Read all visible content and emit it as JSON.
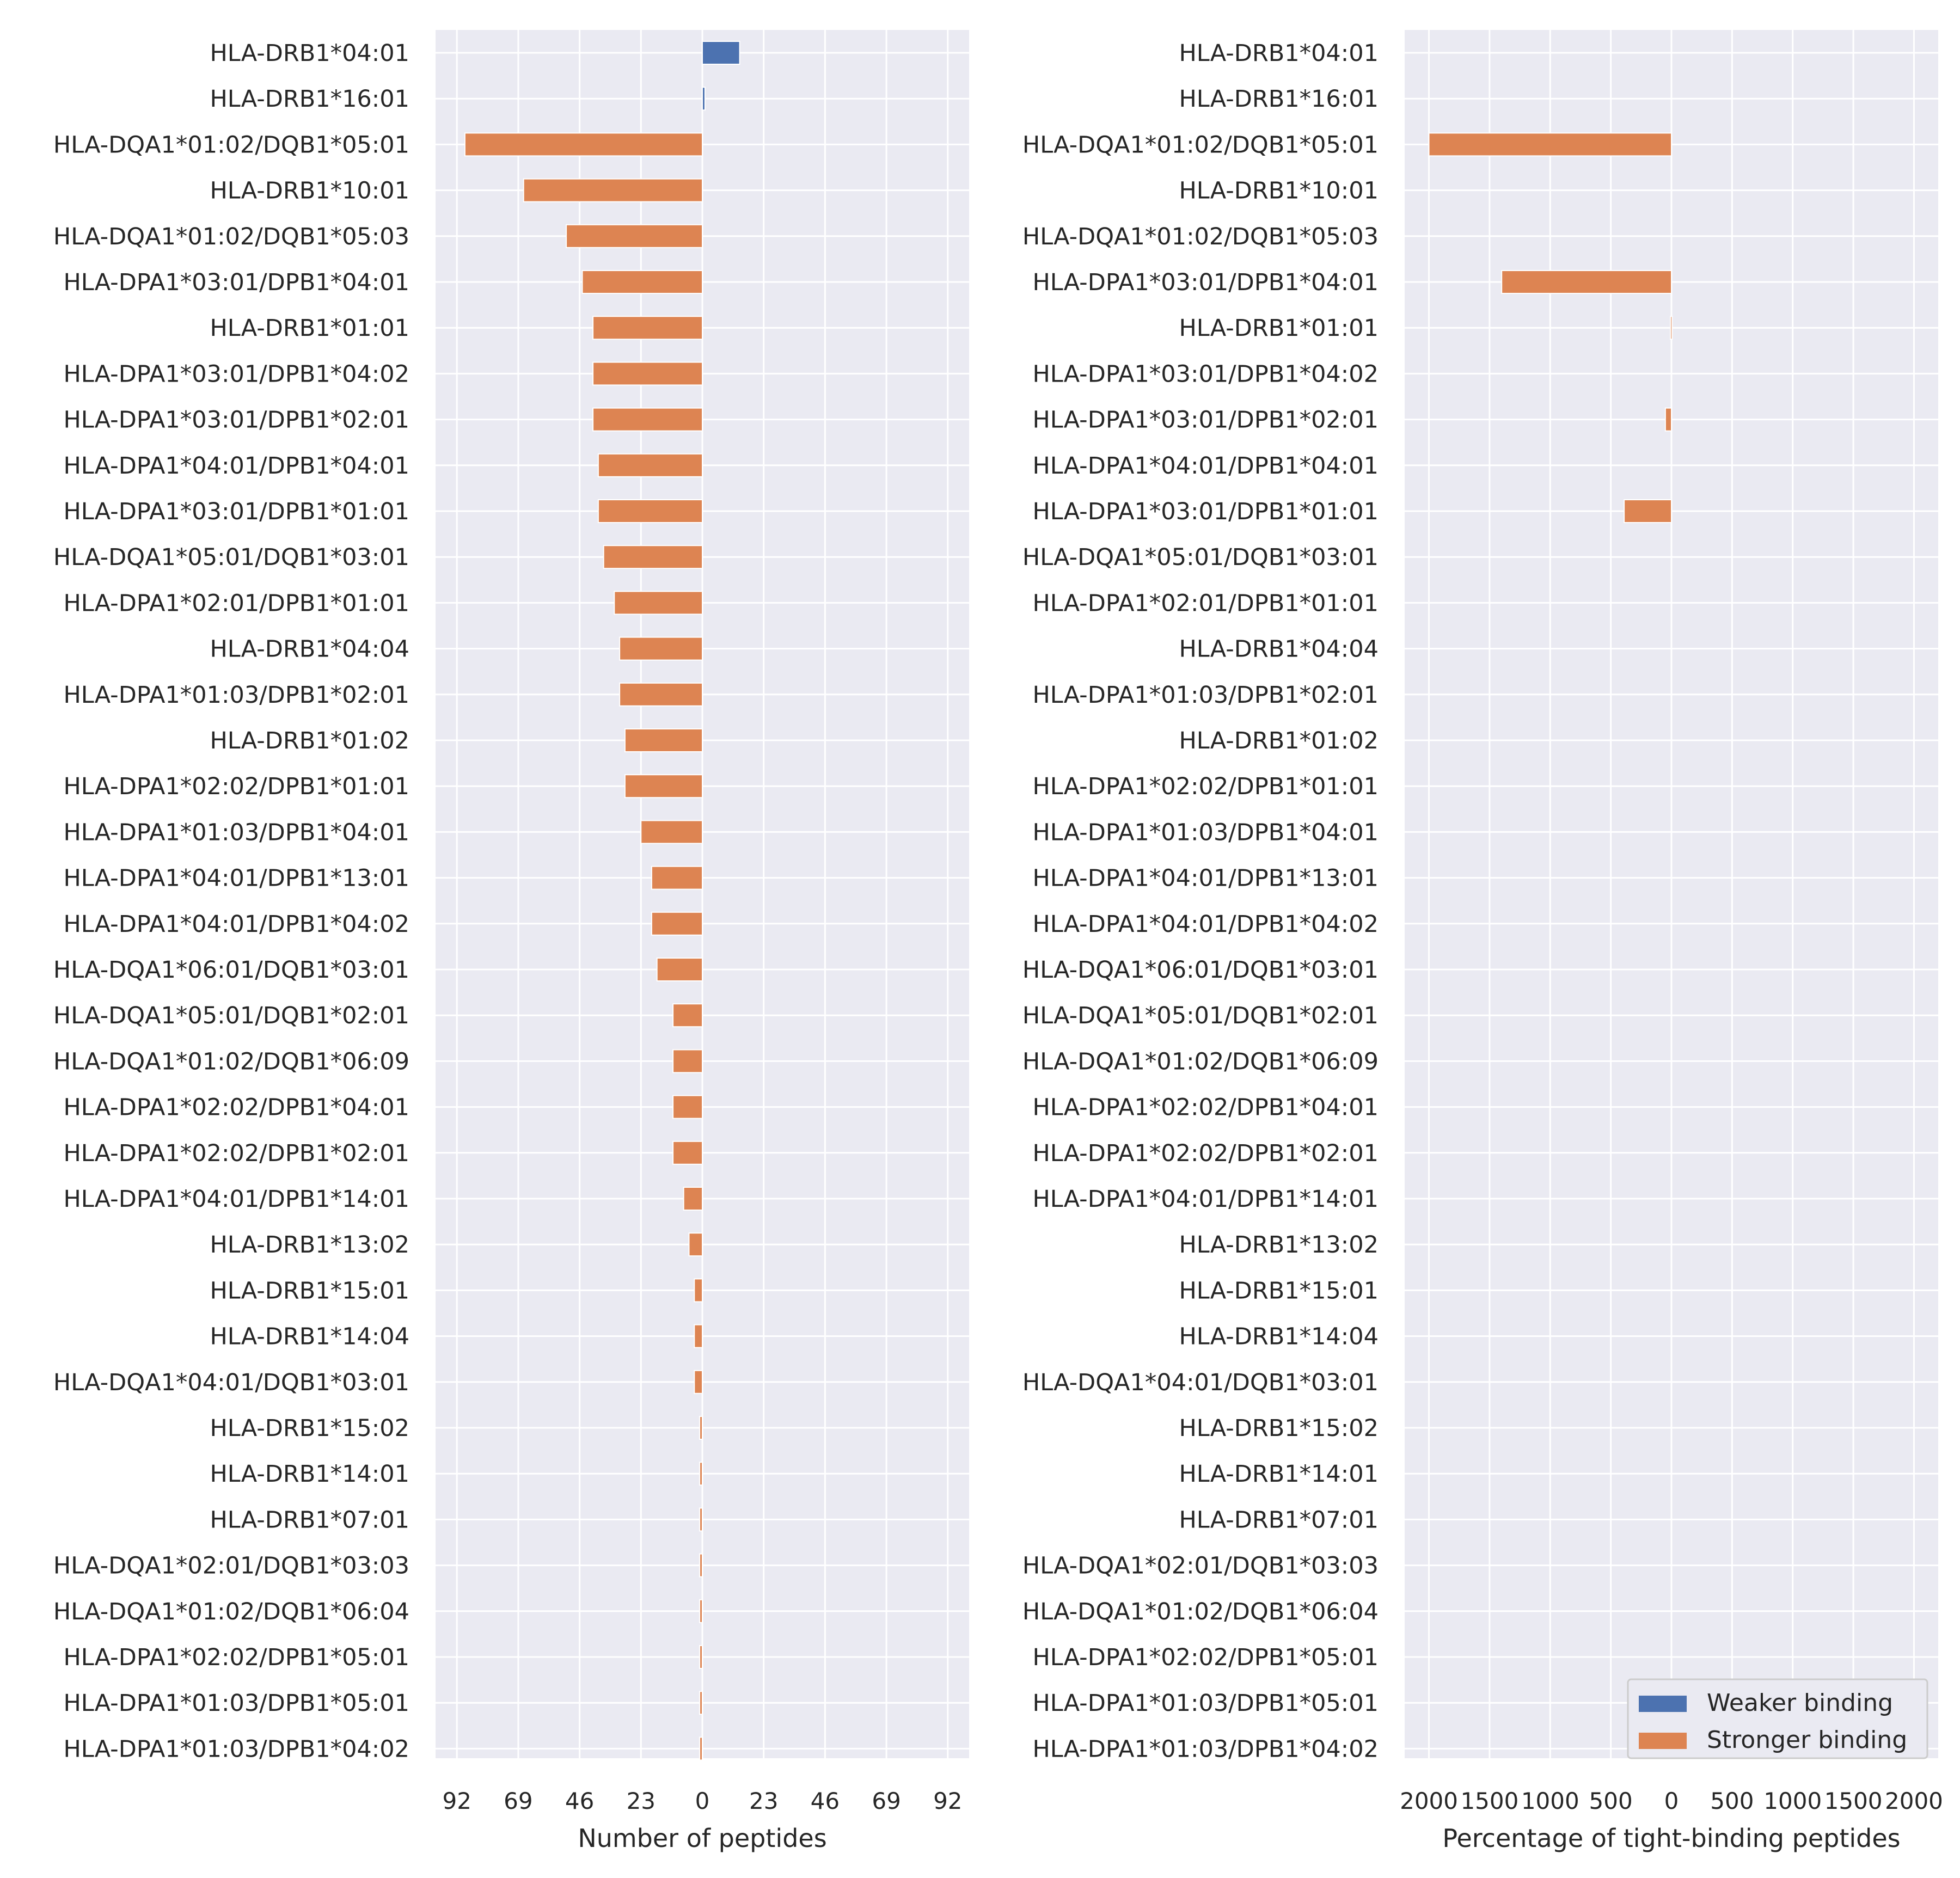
{
  "chart_data": [
    {
      "type": "bar",
      "orientation": "horizontal",
      "categories": [
        "HLA-DRB1*04:01",
        "HLA-DRB1*16:01",
        "HLA-DQA1*01:02/DQB1*05:01",
        "HLA-DRB1*10:01",
        "HLA-DQA1*01:02/DQB1*05:03",
        "HLA-DPA1*03:01/DPB1*04:01",
        "HLA-DRB1*01:01",
        "HLA-DPA1*03:01/DPB1*04:02",
        "HLA-DPA1*03:01/DPB1*02:01",
        "HLA-DPA1*04:01/DPB1*04:01",
        "HLA-DPA1*03:01/DPB1*01:01",
        "HLA-DQA1*05:01/DQB1*03:01",
        "HLA-DPA1*02:01/DPB1*01:01",
        "HLA-DRB1*04:04",
        "HLA-DPA1*01:03/DPB1*02:01",
        "HLA-DRB1*01:02",
        "HLA-DPA1*02:02/DPB1*01:01",
        "HLA-DPA1*01:03/DPB1*04:01",
        "HLA-DPA1*04:01/DPB1*13:01",
        "HLA-DPA1*04:01/DPB1*04:02",
        "HLA-DQA1*06:01/DQB1*03:01",
        "HLA-DQA1*05:01/DQB1*02:01",
        "HLA-DQA1*01:02/DQB1*06:09",
        "HLA-DPA1*02:02/DPB1*04:01",
        "HLA-DPA1*02:02/DPB1*02:01",
        "HLA-DPA1*04:01/DPB1*14:01",
        "HLA-DRB1*13:02",
        "HLA-DRB1*15:01",
        "HLA-DRB1*14:04",
        "HLA-DQA1*04:01/DQB1*03:01",
        "HLA-DRB1*15:02",
        "HLA-DRB1*14:01",
        "HLA-DRB1*07:01",
        "HLA-DQA1*02:01/DQB1*03:03",
        "HLA-DQA1*01:02/DQB1*06:04",
        "HLA-DPA1*02:02/DPB1*05:01",
        "HLA-DPA1*01:03/DPB1*05:01",
        "HLA-DPA1*01:03/DPB1*04:02"
      ],
      "series": [
        {
          "name": "Weaker binding",
          "color": "#4c72b0",
          "values": [
            14,
            1,
            0,
            0,
            0,
            0,
            0,
            0,
            0,
            0,
            0,
            0,
            0,
            0,
            0,
            0,
            0,
            0,
            0,
            0,
            0,
            0,
            0,
            0,
            0,
            0,
            0,
            0,
            0,
            0,
            0,
            0,
            0,
            0,
            0,
            0,
            0,
            0
          ]
        },
        {
          "name": "Stronger binding",
          "color": "#dd8452",
          "values": [
            0,
            0,
            -89,
            -67,
            -51,
            -45,
            -41,
            -41,
            -41,
            -39,
            -39,
            -37,
            -33,
            -31,
            -31,
            -29,
            -29,
            -23,
            -19,
            -19,
            -17,
            -11,
            -11,
            -11,
            -11,
            -7,
            -5,
            -3,
            -3,
            -3,
            -1,
            -1,
            -1,
            -1,
            -1,
            -1,
            -1,
            -1
          ]
        }
      ],
      "xlabel": "Number of peptides",
      "xlim": [
        -100,
        100
      ],
      "xticks": [
        -92,
        -69,
        -46,
        -23,
        0,
        23,
        46,
        69,
        92
      ],
      "xticklabels": [
        "92",
        "69",
        "46",
        "23",
        "0",
        "23",
        "46",
        "69",
        "92"
      ],
      "grid": true
    },
    {
      "type": "bar",
      "orientation": "horizontal",
      "categories_shared_with": 0,
      "series": [
        {
          "name": "Weaker binding",
          "color": "#4c72b0",
          "values": [
            0,
            0,
            0,
            0,
            0,
            0,
            0,
            0,
            0,
            0,
            0,
            0,
            0,
            0,
            0,
            0,
            0,
            0,
            0,
            0,
            0,
            0,
            0,
            0,
            0,
            0,
            0,
            0,
            0,
            0,
            0,
            0,
            0,
            0,
            0,
            0,
            0,
            0
          ]
        },
        {
          "name": "Stronger binding",
          "color": "#dd8452",
          "values": [
            0,
            0,
            -2000,
            0,
            0,
            -1400,
            -8,
            0,
            -50,
            0,
            -390,
            0,
            0,
            0,
            0,
            0,
            0,
            0,
            0,
            0,
            0,
            0,
            0,
            0,
            0,
            0,
            0,
            0,
            0,
            0,
            0,
            0,
            0,
            0,
            0,
            0,
            0,
            0
          ]
        }
      ],
      "xlabel": "Percentage of tight-binding peptides",
      "xlim": [
        -2200,
        2200
      ],
      "xticks": [
        -2000,
        -1500,
        -1000,
        -500,
        0,
        500,
        1000,
        1500,
        2000
      ],
      "xticklabels": [
        "2000",
        "1500",
        "1000",
        "500",
        "0",
        "500",
        "1000",
        "1500",
        "2000"
      ],
      "grid": true,
      "legend": {
        "placement": "lower-right",
        "entries": [
          "Weaker binding",
          "Stronger binding"
        ]
      }
    }
  ]
}
